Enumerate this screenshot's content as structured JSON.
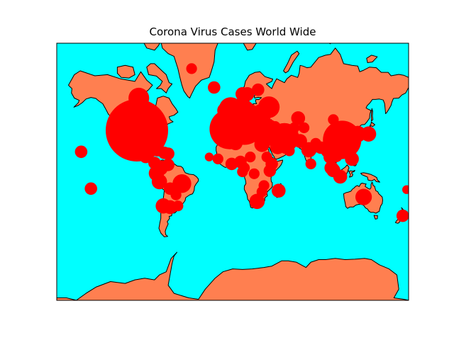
{
  "figure": {
    "title": "Corona Virus Cases World Wide"
  },
  "map": {
    "projection": "mercator",
    "colors": {
      "ocean": "#00ffff",
      "land": "#ff7f50",
      "coast": "#000000",
      "marker": "#ff0000",
      "frame": "#000000"
    }
  },
  "chart_data": {
    "type": "scatter",
    "title": "Corona Virus Cases World Wide",
    "encoding": "bubble area proportional to case count",
    "series": [
      {
        "points": [
          {
            "lon": -98,
            "lat": 39,
            "size": 100
          },
          {
            "lon": -3,
            "lat": 40,
            "size": 42
          },
          {
            "lon": 12,
            "lat": 43,
            "size": 40
          },
          {
            "lon": 112,
            "lat": 31,
            "size": 38
          },
          {
            "lon": 8,
            "lat": 50,
            "size": 28
          },
          {
            "lon": 2,
            "lat": 47,
            "size": 30
          },
          {
            "lon": 53,
            "lat": 33,
            "size": 22
          },
          {
            "lon": 35,
            "lat": 39,
            "size": 14
          },
          {
            "lon": -2,
            "lat": 54,
            "size": 14
          },
          {
            "lon": 37,
            "lat": 55,
            "size": 12
          },
          {
            "lon": -96,
            "lat": 60,
            "size": 11
          },
          {
            "lon": 8,
            "lat": 47,
            "size": 10
          },
          {
            "lon": 5,
            "lat": 52,
            "size": 9
          },
          {
            "lon": 4.5,
            "lat": 50.6,
            "size": 9
          },
          {
            "lon": -52,
            "lat": -12,
            "size": 9
          },
          {
            "lon": 134,
            "lat": -25,
            "size": 7
          },
          {
            "lon": 78,
            "lat": 22,
            "size": 6
          },
          {
            "lon": 139,
            "lat": 36,
            "size": 6
          },
          {
            "lon": 128,
            "lat": 36,
            "size": 7
          },
          {
            "lon": 100,
            "lat": 15,
            "size": 5
          },
          {
            "lon": 103,
            "lat": 1.5,
            "size": 5
          },
          {
            "lon": 110,
            "lat": -5,
            "size": 5
          },
          {
            "lon": 101,
            "lat": 4,
            "size": 5
          },
          {
            "lon": 122,
            "lat": 13,
            "size": 5
          },
          {
            "lon": 106,
            "lat": 16,
            "size": 4
          },
          {
            "lon": 67,
            "lat": 48,
            "size": 5
          },
          {
            "lon": 46,
            "lat": 25,
            "size": 6
          },
          {
            "lon": 54,
            "lat": 24,
            "size": 4
          },
          {
            "lon": 51,
            "lat": 25.5,
            "size": 4
          },
          {
            "lon": 69,
            "lat": 30,
            "size": 5
          },
          {
            "lon": 30,
            "lat": 27,
            "size": 6
          },
          {
            "lon": 3,
            "lat": 28,
            "size": 5
          },
          {
            "lon": -7,
            "lat": 32,
            "size": 5
          },
          {
            "lon": 9,
            "lat": 34,
            "size": 4
          },
          {
            "lon": 8,
            "lat": 10,
            "size": 4
          },
          {
            "lon": -1,
            "lat": 8,
            "size": 4
          },
          {
            "lon": 25,
            "lat": -29,
            "size": 6
          },
          {
            "lon": 38,
            "lat": 1,
            "size": 4
          },
          {
            "lon": 40,
            "lat": 8,
            "size": 4
          },
          {
            "lon": 47,
            "lat": -19,
            "size": 5
          },
          {
            "lon": -74,
            "lat": 4,
            "size": 6
          },
          {
            "lon": -75,
            "lat": -10,
            "size": 6
          },
          {
            "lon": -71,
            "lat": -33,
            "size": 6
          },
          {
            "lon": -64,
            "lat": -34,
            "size": 5
          },
          {
            "lon": -78,
            "lat": -1.5,
            "size": 6
          },
          {
            "lon": -102,
            "lat": 23,
            "size": 6
          },
          {
            "lon": -66,
            "lat": 7,
            "size": 4
          },
          {
            "lon": -89,
            "lat": 15,
            "size": 4
          },
          {
            "lon": -80,
            "lat": 9,
            "size": 4
          },
          {
            "lon": -70,
            "lat": 19,
            "size": 4
          },
          {
            "lon": -66,
            "lat": 18.2,
            "size": 4
          },
          {
            "lon": -77,
            "lat": 21.5,
            "size": 4
          },
          {
            "lon": -64,
            "lat": -17,
            "size": 4
          },
          {
            "lon": -58,
            "lat": -23,
            "size": 3
          },
          {
            "lon": -56,
            "lat": -33,
            "size": 3
          },
          {
            "lon": -155,
            "lat": 20,
            "size": 4
          },
          {
            "lon": 19,
            "lat": 52,
            "size": 6
          },
          {
            "lon": 15,
            "lat": 62,
            "size": 5
          },
          {
            "lon": 10,
            "lat": 62,
            "size": 5
          },
          {
            "lon": 26,
            "lat": 64,
            "size": 4
          },
          {
            "lon": 31,
            "lat": 49,
            "size": 6
          },
          {
            "lon": 25,
            "lat": 46,
            "size": 5
          },
          {
            "lon": -8,
            "lat": 39.5,
            "size": 7
          },
          {
            "lon": 14,
            "lat": 47.5,
            "size": 6
          },
          {
            "lon": 15,
            "lat": 50,
            "size": 5
          },
          {
            "lon": -19,
            "lat": 65,
            "size": 4
          },
          {
            "lon": -8,
            "lat": 53,
            "size": 6
          },
          {
            "lon": 22,
            "lat": 39,
            "size": 4
          },
          {
            "lon": 34,
            "lat": 31,
            "size": 5
          },
          {
            "lon": 44,
            "lat": 33,
            "size": 4
          },
          {
            "lon": 35,
            "lat": 15,
            "size": 3
          },
          {
            "lon": 18,
            "lat": 15,
            "size": 3
          },
          {
            "lon": 22,
            "lat": -2,
            "size": 3
          },
          {
            "lon": 32,
            "lat": -14,
            "size": 3
          },
          {
            "lon": 30,
            "lat": -20,
            "size": 3
          },
          {
            "lon": 12,
            "lat": 4,
            "size": 3
          },
          {
            "lon": -15,
            "lat": 13,
            "size": 3
          },
          {
            "lon": -24,
            "lat": 15,
            "size": 2
          },
          {
            "lon": 10,
            "lat": 0,
            "size": 3
          },
          {
            "lon": 85,
            "lat": 28,
            "size": 3
          },
          {
            "lon": 90,
            "lat": 24,
            "size": 4
          },
          {
            "lon": 80,
            "lat": 8,
            "size": 3
          },
          {
            "lon": 96,
            "lat": 20,
            "size": 3
          },
          {
            "lon": 114,
            "lat": 22.3,
            "size": 5
          },
          {
            "lon": 121,
            "lat": 24,
            "size": 4
          },
          {
            "lon": 103,
            "lat": 47,
            "size": 3
          },
          {
            "lon": 174,
            "lat": -41,
            "size": 4
          },
          {
            "lon": 178,
            "lat": -18,
            "size": 2
          },
          {
            "lon": -145,
            "lat": -17,
            "size": 4
          },
          {
            "lon": -42,
            "lat": 72,
            "size": 3
          },
          {
            "lon": 44,
            "lat": 40,
            "size": 3
          },
          {
            "lon": 47,
            "lat": 40,
            "size": 3
          },
          {
            "lon": 43.5,
            "lat": 42,
            "size": 3
          },
          {
            "lon": 58,
            "lat": 21,
            "size": 3
          },
          {
            "lon": 50.5,
            "lat": 26,
            "size": 3
          },
          {
            "lon": 73,
            "lat": 41,
            "size": 3
          },
          {
            "lon": 63,
            "lat": 41,
            "size": 3
          },
          {
            "lon": 28,
            "lat": 53,
            "size": 4
          },
          {
            "lon": 20,
            "lat": 44,
            "size": 4
          },
          {
            "lon": 16,
            "lat": 45,
            "size": 4
          },
          {
            "lon": 25,
            "lat": 43,
            "size": 4
          },
          {
            "lon": 19,
            "lat": 47,
            "size": 4
          }
        ]
      }
    ]
  }
}
